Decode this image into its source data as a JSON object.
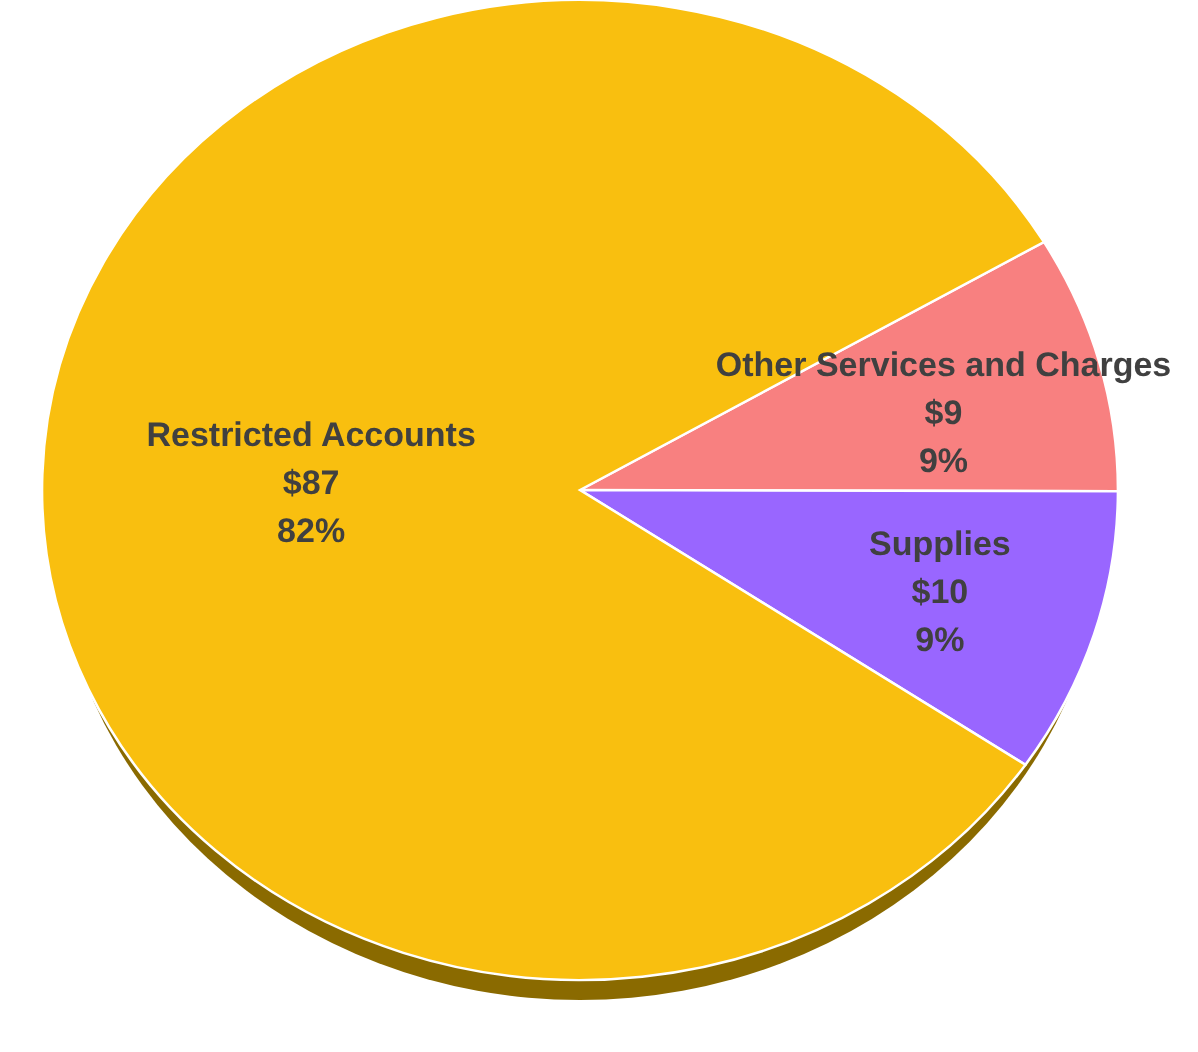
{
  "chart_data": {
    "type": "pie",
    "categories": [
      "Other Services and Charges",
      "Supplies",
      "Restricted Accounts"
    ],
    "values": [
      9,
      10,
      87
    ],
    "colors": [
      "#f88080",
      "#9966ff",
      "#f9bf0f"
    ],
    "value_labels": [
      "$9\n9%",
      "$10\n9%",
      "$87\n82%"
    ]
  }
}
